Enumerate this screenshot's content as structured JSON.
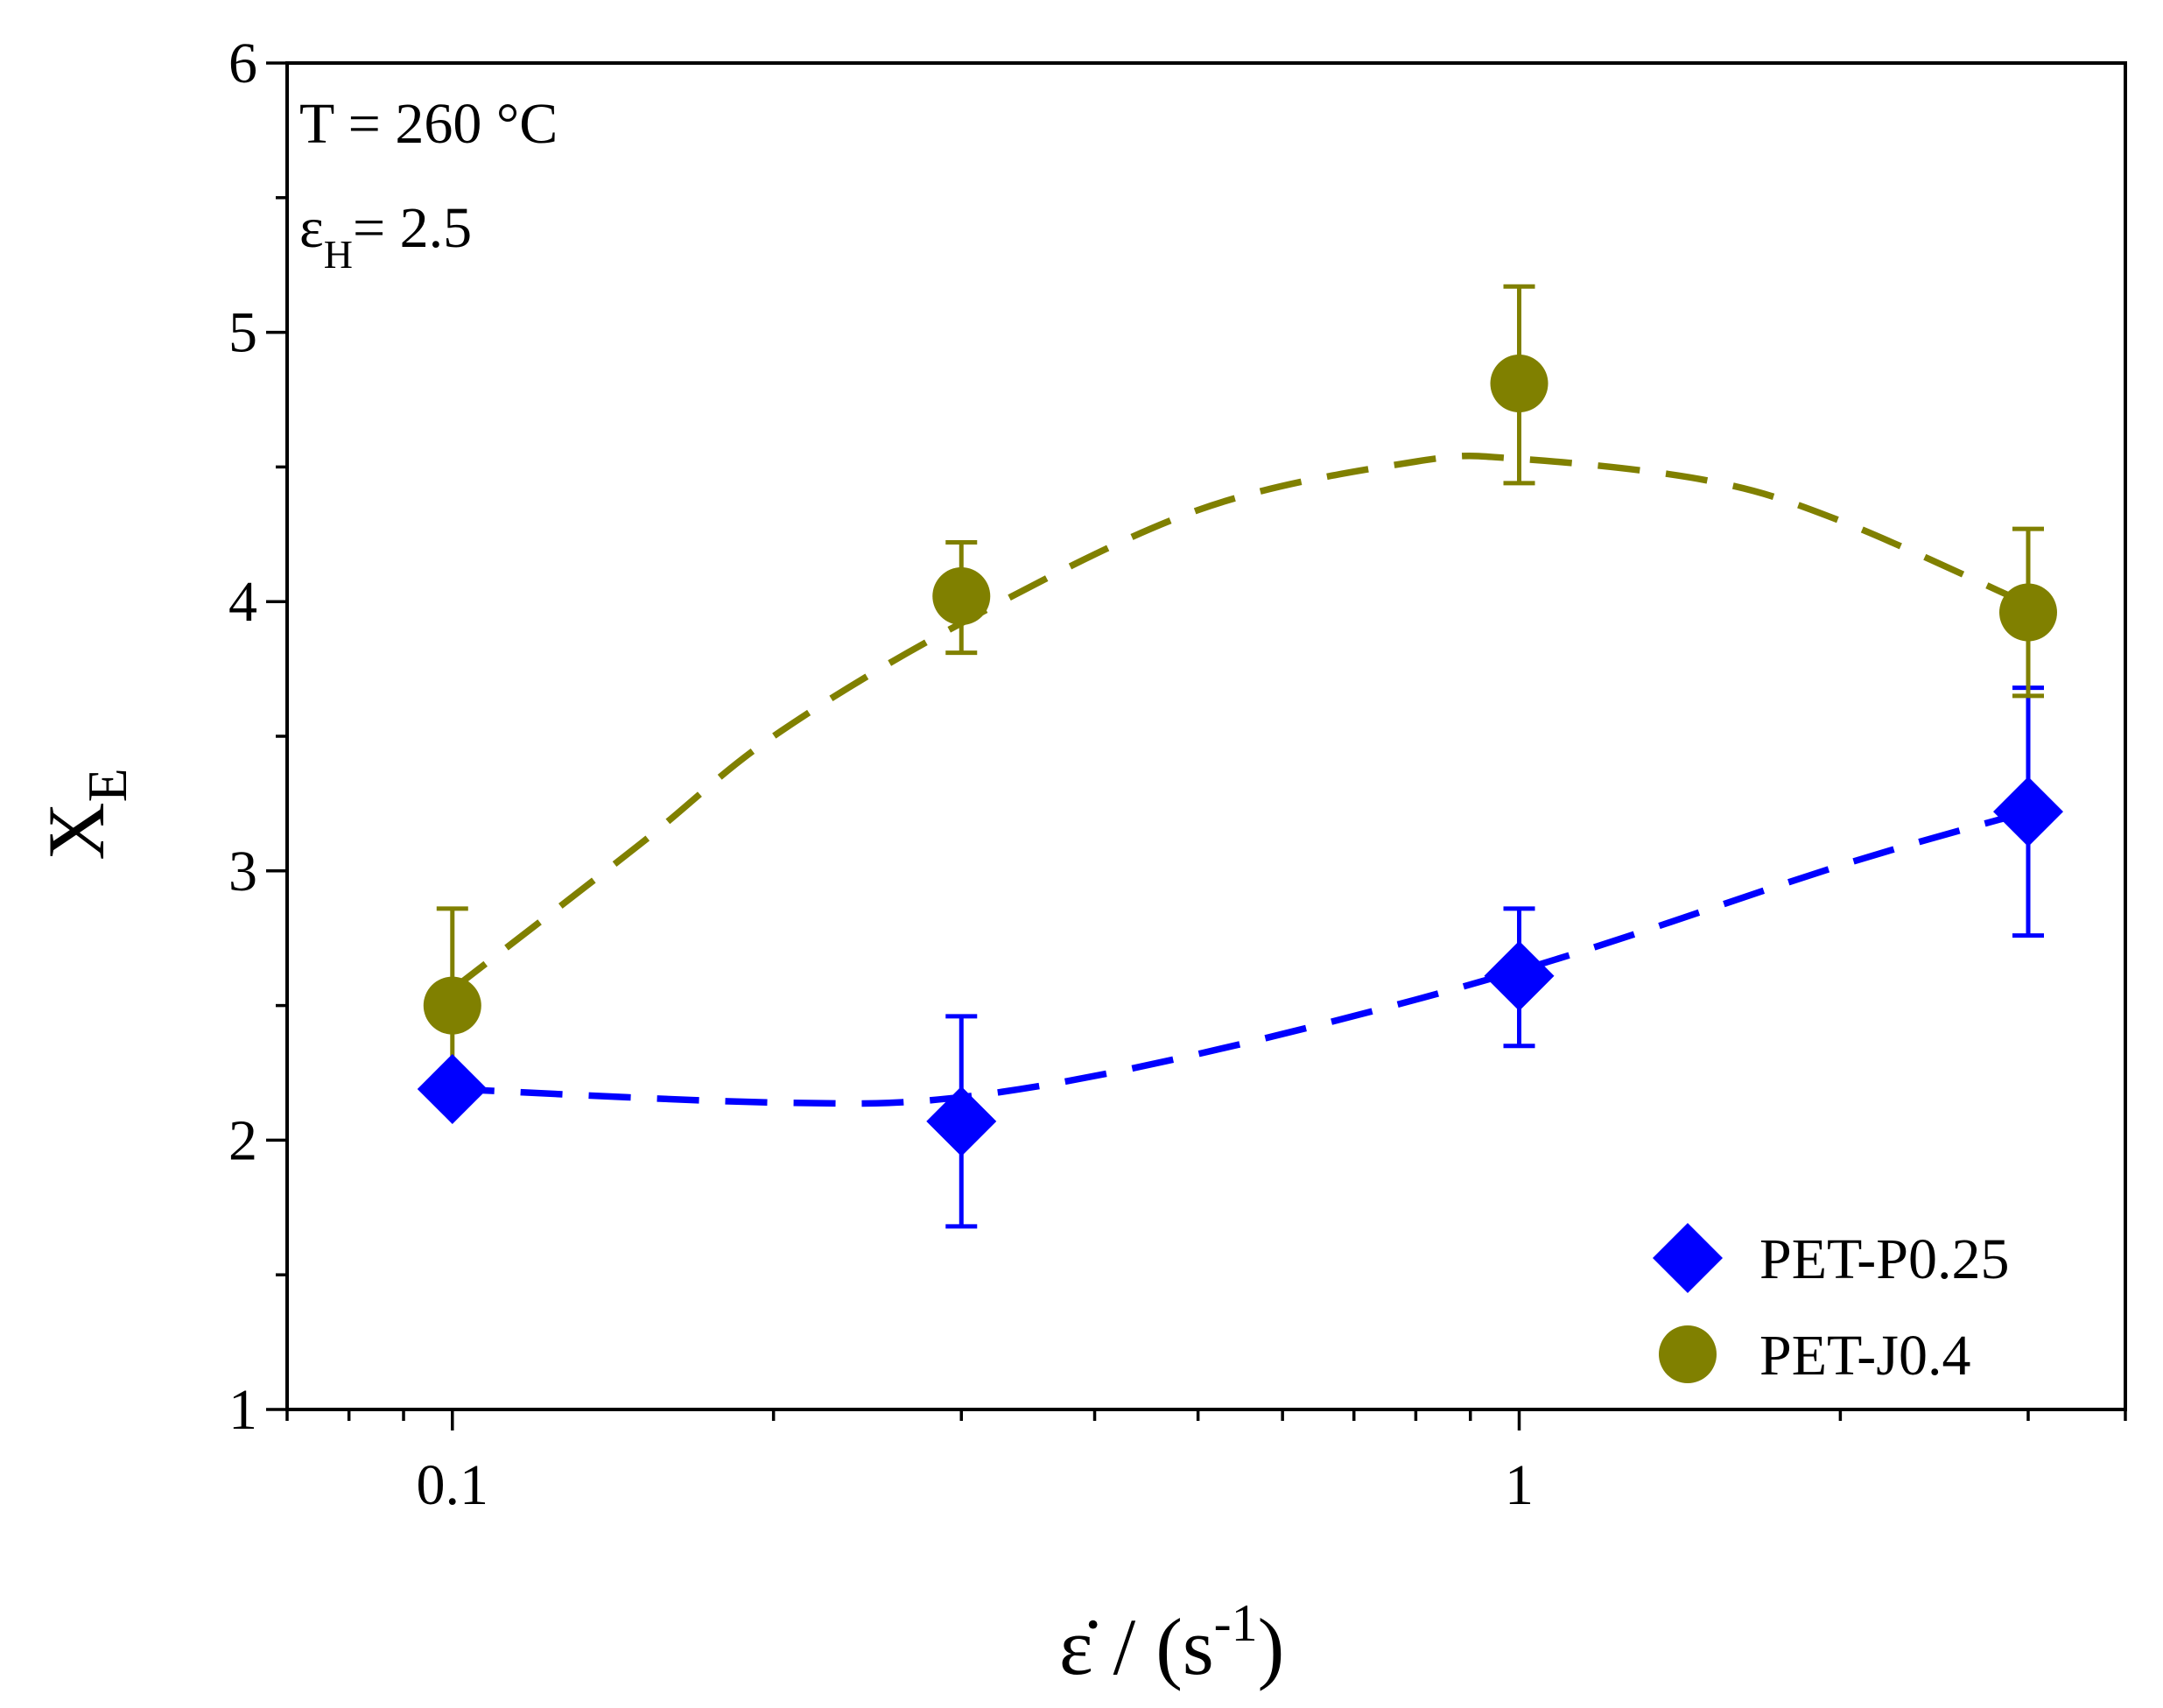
{
  "chart_data": {
    "type": "scatter",
    "title": "",
    "xlabel": "ε̇ / (s-1)",
    "xlabel_parts": {
      "symbol": "ε̇",
      "unit_open": " / (s",
      "unit_exp": "-1",
      "unit_close": ")"
    },
    "ylabel": "XE",
    "ylabel_parts": {
      "main": "X",
      "sub": "E"
    },
    "xscale": "log",
    "xlim": [
      0.07,
      3.7
    ],
    "ylim": [
      1,
      6
    ],
    "xticks": [
      0.1,
      1
    ],
    "xtick_labels": [
      "0.1",
      "1"
    ],
    "x_minor_ticks": [
      0.07,
      0.08,
      0.09,
      0.2,
      0.3,
      0.4,
      0.5,
      0.6,
      0.7,
      0.8,
      0.9,
      2,
      3
    ],
    "yticks": [
      1,
      2,
      3,
      4,
      5,
      6
    ],
    "ytick_labels": [
      "1",
      "2",
      "3",
      "4",
      "5",
      "6"
    ],
    "y_minor_ticks": [
      1.5,
      2.5,
      3.5,
      4.5,
      5.5
    ],
    "grid": false,
    "legend_position": "bottom-right",
    "annotations": [
      {
        "id": "temp",
        "text": "T = 260 °C"
      },
      {
        "id": "strain",
        "main": "ε",
        "sub": "H",
        "rest": "= 2.5"
      }
    ],
    "series": [
      {
        "name": "PET-P0.25",
        "marker": "diamond",
        "color": "#0000ff",
        "x": [
          0.1,
          0.3,
          1,
          3
        ],
        "y": [
          2.19,
          2.07,
          2.61,
          3.22
        ],
        "yerr_low": [
          2.13,
          1.68,
          2.35,
          2.76
        ],
        "yerr_high": [
          2.25,
          2.46,
          2.86,
          3.68
        ],
        "fit": {
          "x": [
            0.1,
            0.2,
            0.3,
            0.5,
            1,
            2,
            3
          ],
          "y": [
            2.19,
            2.14,
            2.16,
            2.32,
            2.63,
            3.02,
            3.22
          ]
        }
      },
      {
        "name": "PET-J0.4",
        "marker": "circle",
        "color": "#808000",
        "x": [
          0.1,
          0.3,
          1,
          3
        ],
        "y": [
          2.5,
          4.02,
          4.81,
          3.96
        ],
        "yerr_low": [
          2.13,
          3.81,
          4.44,
          3.65
        ],
        "yerr_high": [
          2.86,
          4.22,
          5.17,
          4.27
        ],
        "fit": {
          "x": [
            0.1,
            0.15,
            0.2,
            0.3,
            0.5,
            0.8,
            1,
            1.5,
            2,
            3
          ],
          "y": [
            2.56,
            3.1,
            3.5,
            3.92,
            4.34,
            4.52,
            4.53,
            4.45,
            4.3,
            3.99
          ]
        }
      }
    ]
  }
}
